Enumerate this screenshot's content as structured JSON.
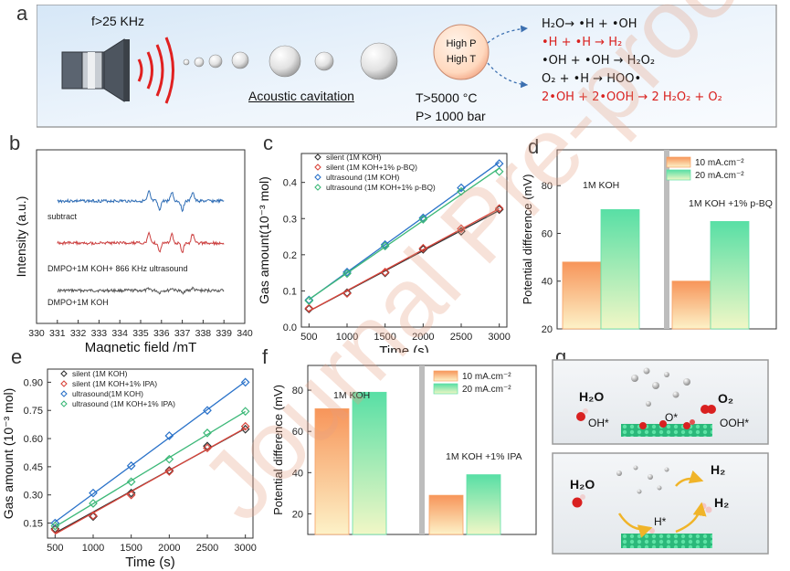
{
  "panel_labels": {
    "a": "a",
    "b": "b",
    "c": "c",
    "d": "d",
    "e": "e",
    "f": "f",
    "g": "g"
  },
  "panel_a": {
    "frequency": "f>25 KHz",
    "cavitation": "Acoustic cavitation",
    "bubble_line1": "High P",
    "bubble_line2": "High T",
    "temperature": "T>5000 °C",
    "pressure": "P> 1000 bar",
    "reactions": [
      {
        "text": "H₂O→ •H + •OH",
        "color": "#111111"
      },
      {
        "text": "•H + •H → H₂",
        "color": "#d9211e"
      },
      {
        "text": "•OH + •OH → H₂O₂",
        "color": "#111111"
      },
      {
        "text": "O₂ + •H → HOO•",
        "color": "#111111"
      },
      {
        "text": "2•OH + 2•OOH → 2 H₂O₂ + O₂",
        "color": "#d9211e"
      }
    ]
  },
  "panel_g": {
    "top": {
      "h2o": "H₂O",
      "o2": "O₂",
      "oh": "OH*",
      "o": "O*",
      "ooh": "OOH*"
    },
    "bottom": {
      "h2o": "H₂O",
      "h_star": "H*",
      "h2_a": "H₂",
      "h2_b": "H₂"
    }
  },
  "watermark": "Journal Pre-proof",
  "chart_data": [
    {
      "id": "b",
      "type": "line",
      "xlabel": "Magnetic field /mT",
      "ylabel": "Intensity (a.u.)",
      "xlim": [
        330,
        340
      ],
      "xticks": [
        330,
        331,
        332,
        333,
        334,
        335,
        336,
        337,
        338,
        339,
        340
      ],
      "series": [
        {
          "name": "subtract",
          "color": "#2f6db5"
        },
        {
          "name": "DMPO+1M KOH+ 866 KHz ultrasound",
          "color": "#cc4040"
        },
        {
          "name": "DMPO+1M KOH",
          "color": "#555555"
        }
      ]
    },
    {
      "id": "c",
      "type": "scatter",
      "xlabel": "Time (s)",
      "ylabel": "Gas amount(10⁻³ mol)",
      "xlim": [
        400,
        3100
      ],
      "ylim": [
        0.0,
        0.48
      ],
      "xticks": [
        500,
        1000,
        1500,
        2000,
        2500,
        3000
      ],
      "yticks": [
        0.0,
        0.1,
        0.2,
        0.3,
        0.4
      ],
      "x": [
        500,
        1000,
        1500,
        2000,
        2500,
        3000
      ],
      "series": [
        {
          "name": "silent (1M KOH)",
          "color": "#333333",
          "values": [
            0.05,
            0.095,
            0.15,
            0.215,
            0.265,
            0.325
          ]
        },
        {
          "name": "silent (1M KOH+1% p-BQ)",
          "color": "#d9443a",
          "values": [
            0.052,
            0.093,
            0.152,
            0.218,
            0.272,
            0.328
          ]
        },
        {
          "name": "ultrasound (1M KOH)",
          "color": "#2a72c9",
          "values": [
            0.075,
            0.152,
            0.228,
            0.302,
            0.385,
            0.452
          ]
        },
        {
          "name": "ultrasound (1M KOH+1% p-BQ)",
          "color": "#3cb878",
          "values": [
            0.073,
            0.148,
            0.224,
            0.298,
            0.375,
            0.43
          ]
        }
      ]
    },
    {
      "id": "d",
      "type": "bar",
      "ylabel": "Potential difference (mV)",
      "ylim": [
        20,
        95
      ],
      "yticks": [
        20,
        40,
        60,
        80
      ],
      "categories": [
        "1M KOH",
        "1M KOH +1%  p-BQ"
      ],
      "series": [
        {
          "name": "10 mA.cm⁻²",
          "color": "#f7a064",
          "values": [
            48,
            40
          ]
        },
        {
          "name": "20 mA.cm⁻²",
          "color": "#5fe0a8",
          "values": [
            70,
            65
          ]
        }
      ]
    },
    {
      "id": "e",
      "type": "scatter",
      "xlabel": "Time (s)",
      "ylabel": "Gas amount (10⁻³ mol)",
      "xlim": [
        400,
        3100
      ],
      "ylim": [
        0.07,
        0.97
      ],
      "xticks": [
        500,
        1000,
        1500,
        2000,
        2500,
        3000
      ],
      "yticks": [
        0.15,
        0.3,
        0.45,
        0.6,
        0.75,
        0.9
      ],
      "x": [
        500,
        1000,
        1500,
        2000,
        2500,
        3000
      ],
      "series": [
        {
          "name": "silent (1M KOH)",
          "color": "#333333",
          "values": [
            0.12,
            0.185,
            0.31,
            0.43,
            0.56,
            0.65
          ]
        },
        {
          "name": "silent (1M KOH+1% IPA)",
          "color": "#d9443a",
          "values": [
            0.115,
            0.19,
            0.3,
            0.425,
            0.55,
            0.665
          ]
        },
        {
          "name": "ultrasound(1M KOH)",
          "color": "#2a72c9",
          "values": [
            0.15,
            0.31,
            0.455,
            0.615,
            0.75,
            0.9
          ]
        },
        {
          "name": "ultrasound (1M KOH+1% IPA)",
          "color": "#3cb878",
          "values": [
            0.135,
            0.255,
            0.37,
            0.49,
            0.63,
            0.745
          ]
        }
      ]
    },
    {
      "id": "f",
      "type": "bar",
      "ylabel": "Potential difference (mV)",
      "ylim": [
        10,
        92
      ],
      "yticks": [
        20,
        40,
        60,
        80
      ],
      "categories": [
        "1M KOH",
        "1M KOH +1% IPA"
      ],
      "series": [
        {
          "name": "10 mA.cm⁻²",
          "color": "#f7a064",
          "values": [
            71,
            29
          ]
        },
        {
          "name": "20 mA.cm⁻²",
          "color": "#5fe0a8",
          "values": [
            79,
            39
          ]
        }
      ]
    }
  ]
}
